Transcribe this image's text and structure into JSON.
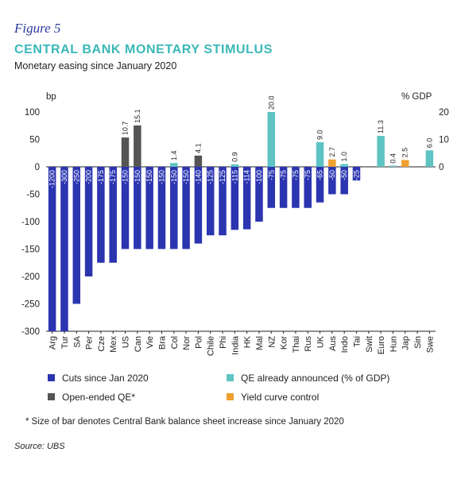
{
  "figure_label": "Figure 5",
  "title": "CENTRAL BANK MONETARY STIMULUS",
  "subtitle": "Monetary easing since January 2020",
  "source": "Source: UBS",
  "note": "* Size of bar denotes Central Bank balance sheet increase since January 2020",
  "colors": {
    "cuts": "#2b35b0",
    "qe": "#5ec3c3",
    "open_qe": "#555555",
    "ycc": "#f0a030",
    "axis": "#222222"
  },
  "legend": [
    {
      "key": "cuts",
      "label": "Cuts since Jan 2020"
    },
    {
      "key": "qe",
      "label": "QE already announced (% of GDP)"
    },
    {
      "key": "open_qe",
      "label": "Open-ended QE*"
    },
    {
      "key": "ycc",
      "label": "Yield curve control"
    }
  ],
  "chart_data": {
    "type": "bar",
    "left_axis": {
      "label": "bp",
      "range": [
        -300,
        100
      ],
      "ticks": [
        100,
        50,
        0,
        -50,
        -100,
        -150,
        -200,
        -250,
        -300
      ]
    },
    "right_axis": {
      "label": "% GDP",
      "range": [
        -60,
        20
      ],
      "ticks": [
        20,
        10,
        0
      ]
    },
    "categories": [
      "Arg",
      "Tur",
      "SA",
      "Per",
      "Cze",
      "Mex",
      "US",
      "Can",
      "Vie",
      "Bra",
      "Col",
      "Nor",
      "Pol",
      "Chile",
      "Phi",
      "India",
      "HK",
      "Mal",
      "NZ",
      "Kor",
      "Thai",
      "Rus",
      "UK",
      "Aus",
      "Indo",
      "Tai",
      "Swit",
      "Euro",
      "Hun",
      "Jap",
      "Sin",
      "Swe"
    ],
    "cuts": [
      -1200,
      -300,
      -250,
      -200,
      -175,
      -175,
      -150,
      -150,
      -150,
      -150,
      -150,
      -150,
      -140,
      -125,
      -125,
      -115,
      -114,
      -100,
      -75,
      -75,
      -75,
      -75,
      -65,
      -50,
      -50,
      -25,
      null,
      null,
      null,
      null,
      null,
      null
    ],
    "cuts_labels": [
      "-1200",
      "-300",
      "-250",
      "-200",
      "-175",
      "-175",
      "-150",
      "-150",
      "-150",
      "-150",
      "-150",
      "-150",
      "-140",
      "-125",
      "-125",
      "-115",
      "-114",
      "-100",
      "-75",
      "-75",
      "-75",
      "-75",
      "-65",
      "-50",
      "-50",
      "-25",
      "",
      "",
      "",
      "",
      "",
      ""
    ],
    "open_qe": [
      null,
      null,
      null,
      null,
      null,
      null,
      10.7,
      15.1,
      null,
      null,
      null,
      null,
      4.1,
      null,
      null,
      null,
      null,
      null,
      null,
      null,
      null,
      null,
      null,
      null,
      null,
      null,
      null,
      null,
      null,
      null,
      null,
      null
    ],
    "qe": [
      null,
      null,
      null,
      null,
      null,
      null,
      null,
      null,
      null,
      null,
      1.4,
      null,
      null,
      null,
      null,
      0.9,
      null,
      null,
      20.0,
      null,
      null,
      null,
      9.0,
      null,
      1.0,
      null,
      null,
      11.3,
      0.4,
      null,
      null,
      6.0
    ],
    "ycc": [
      null,
      null,
      null,
      null,
      null,
      null,
      null,
      null,
      null,
      null,
      null,
      null,
      null,
      null,
      null,
      null,
      null,
      null,
      null,
      null,
      null,
      null,
      null,
      2.7,
      null,
      null,
      null,
      null,
      null,
      2.5,
      null,
      null
    ],
    "top_labels": [
      "",
      "",
      "",
      "",
      "",
      "",
      "10.7",
      "15.1",
      "",
      "",
      "1.4",
      "",
      "4.1",
      "",
      "",
      "0.9",
      "",
      "",
      "20.0",
      "",
      "",
      "",
      "9.0",
      "2.7",
      "1.0",
      "",
      "",
      "11.3",
      "0.4",
      "2.5",
      "",
      "6.0"
    ]
  }
}
